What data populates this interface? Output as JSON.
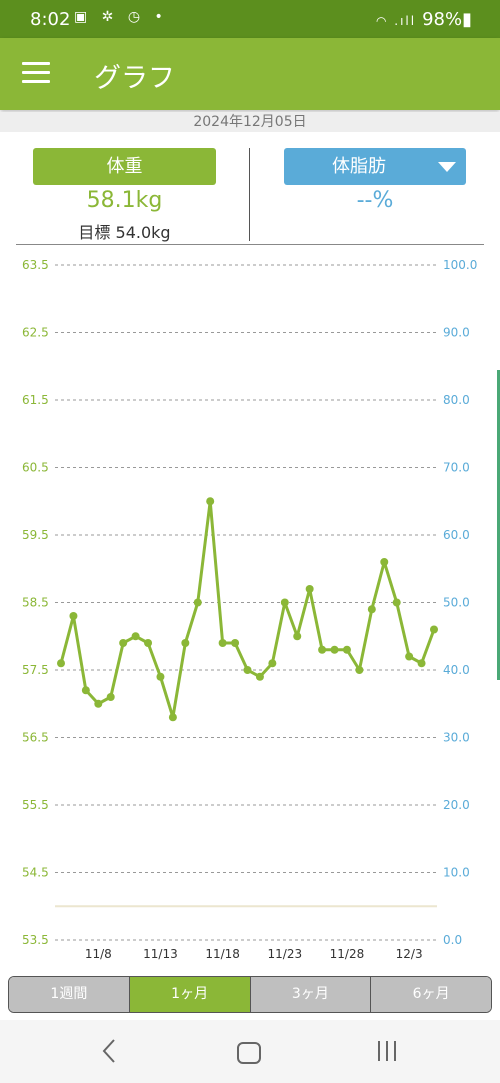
{
  "status_bar": {
    "time": "8:02",
    "notification_icons": "▣ ✲ ◷ •",
    "signal": "◠ .ıll",
    "battery": "98%▮"
  },
  "app_bar": {
    "title": "グラフ"
  },
  "date": "2024年12月05日",
  "weight_panel": {
    "button_label": "体重",
    "value": "58.1kg",
    "goal": "目標 54.0kg"
  },
  "fat_panel": {
    "button_label": "体脂肪",
    "value": "--%"
  },
  "tabs": [
    {
      "label": "1週間",
      "active": false
    },
    {
      "label": "1ヶ月",
      "active": true
    },
    {
      "label": "3ヶ月",
      "active": false
    },
    {
      "label": "6ヶ月",
      "active": false
    }
  ],
  "chart_data": {
    "type": "line",
    "y_left": {
      "ticks": [
        "63.5",
        "62.5",
        "61.5",
        "60.5",
        "59.5",
        "58.5",
        "57.5",
        "56.5",
        "55.5",
        "54.5",
        "53.5"
      ],
      "range": [
        53.5,
        63.5
      ]
    },
    "y_right": {
      "ticks": [
        "100.0",
        "90.0",
        "80.0",
        "70.0",
        "60.0",
        "50.0",
        "40.0",
        "30.0",
        "20.0",
        "10.0",
        "0.0"
      ],
      "range": [
        0,
        100
      ]
    },
    "x_ticks": [
      {
        "day": 8,
        "label": "11/8"
      },
      {
        "day": 13,
        "label": "11/13"
      },
      {
        "day": 18,
        "label": "11/18"
      },
      {
        "day": 23,
        "label": "11/23"
      },
      {
        "day": 28,
        "label": "11/28"
      },
      {
        "day": 33,
        "label": "12/3"
      }
    ],
    "x_range": [
      5,
      35
    ],
    "goal_line": 54.0,
    "series": [
      {
        "values": [
          {
            "day": 5,
            "y": 57.6
          },
          {
            "day": 6,
            "y": 58.3
          },
          {
            "day": 7,
            "y": 57.2
          },
          {
            "day": 8,
            "y": 57.0
          },
          {
            "day": 9,
            "y": 57.1
          },
          {
            "day": 10,
            "y": 57.9
          },
          {
            "day": 11,
            "y": 58.0
          },
          {
            "day": 12,
            "y": 57.9
          },
          {
            "day": 13,
            "y": 57.4
          },
          {
            "day": 14,
            "y": 56.8
          },
          {
            "day": 15,
            "y": 57.9
          },
          {
            "day": 16,
            "y": 58.5
          },
          {
            "day": 17,
            "y": 60.0
          },
          {
            "day": 18,
            "y": 57.9
          },
          {
            "day": 19,
            "y": 57.9
          },
          {
            "day": 20,
            "y": 57.5
          },
          {
            "day": 21,
            "y": 57.4
          },
          {
            "day": 22,
            "y": 57.6
          },
          {
            "day": 23,
            "y": 58.5
          },
          {
            "day": 24,
            "y": 58.0
          },
          {
            "day": 25,
            "y": 58.7
          },
          {
            "day": 26,
            "y": 57.8
          },
          {
            "day": 27,
            "y": 57.8
          },
          {
            "day": 28,
            "y": 57.8
          },
          {
            "day": 29,
            "y": 57.5
          },
          {
            "day": 30,
            "y": 58.4
          },
          {
            "day": 31,
            "y": 59.1
          },
          {
            "day": 32,
            "y": 58.5
          },
          {
            "day": 33,
            "y": 57.7
          },
          {
            "day": 34,
            "y": 57.6
          },
          {
            "day": 35,
            "y": 58.1
          }
        ]
      }
    ],
    "colors": {
      "weight": "#8bb737",
      "fat": "#5aabd8",
      "grid": "#999999",
      "goal": "#ece6cf"
    }
  }
}
